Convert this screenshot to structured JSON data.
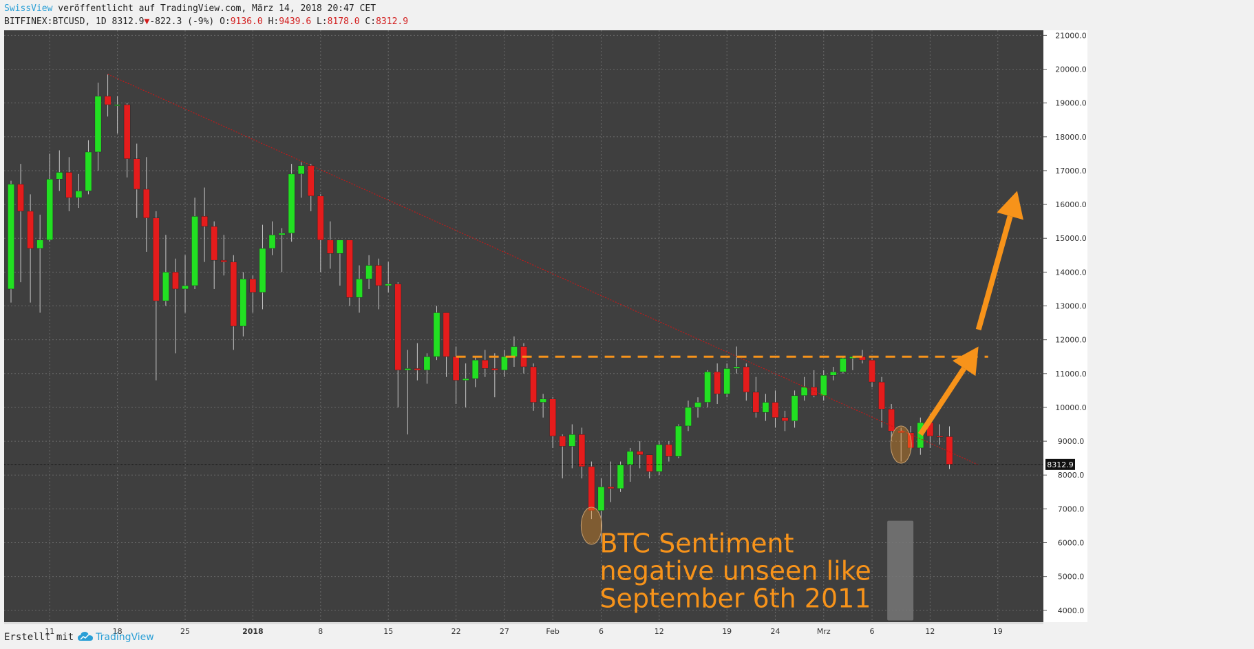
{
  "header": {
    "brand": "SwissView",
    "published": " veröffentlicht auf TradingView.com, März 14, 2018 20:47 CET",
    "symbol": "BITFINEX:BTCUSD, 1D 8312.9",
    "change_arrow": "▼",
    "change": "-822.3 (-9%)",
    "o_label": " O:",
    "o_value": "9136.0",
    "h_label": " H:",
    "h_value": "9439.6",
    "l_label": " L:",
    "l_value": "8178.0",
    "c_label": " C:",
    "c_value": "8312.9"
  },
  "footer": {
    "created_with": "Erstellt mit",
    "tradingview": "TradingView"
  },
  "colors": {
    "background": "#3f3f3f",
    "grid": "#6a6a6a",
    "up": "#22e022",
    "down": "#e51c1c",
    "wick": "#c8c8c8",
    "annotation": "#f7931a",
    "trendline": "#c11a1a"
  },
  "chart_data": {
    "type": "candlestick",
    "x_start": "2017-12-07",
    "x_end": "2018-03-23",
    "ylim": [
      3650,
      21150
    ],
    "y_ticks": [
      4000,
      5000,
      6000,
      7000,
      8000,
      9000,
      10000,
      11000,
      12000,
      13000,
      14000,
      15000,
      16000,
      17000,
      18000,
      19000,
      20000,
      21000
    ],
    "y_tick_labels": [
      "4000.0",
      "5000.0",
      "6000.0",
      "7000.0",
      "8000.0",
      "9000.0",
      "10000.0",
      "11000.0",
      "12000.0",
      "13000.0",
      "14000.0",
      "15000.0",
      "16000.0",
      "17000.0",
      "18000.0",
      "19000.0",
      "20000.0",
      "21000.0"
    ],
    "x_ticks": [
      {
        "date": "2017-12-11",
        "label": "11",
        "bold": false
      },
      {
        "date": "2017-12-18",
        "label": "18",
        "bold": false
      },
      {
        "date": "2017-12-25",
        "label": "25",
        "bold": false
      },
      {
        "date": "2018-01-01",
        "label": "2018",
        "bold": true
      },
      {
        "date": "2018-01-08",
        "label": "8",
        "bold": false
      },
      {
        "date": "2018-01-15",
        "label": "15",
        "bold": false
      },
      {
        "date": "2018-01-22",
        "label": "22",
        "bold": false
      },
      {
        "date": "2018-01-27",
        "label": "27",
        "bold": false
      },
      {
        "date": "2018-02-01",
        "label": "Feb",
        "bold": false
      },
      {
        "date": "2018-02-06",
        "label": "6",
        "bold": false
      },
      {
        "date": "2018-02-12",
        "label": "12",
        "bold": false
      },
      {
        "date": "2018-02-19",
        "label": "19",
        "bold": false
      },
      {
        "date": "2018-02-24",
        "label": "24",
        "bold": false
      },
      {
        "date": "2018-03-01",
        "label": "Mrz",
        "bold": false
      },
      {
        "date": "2018-03-06",
        "label": "6",
        "bold": false
      },
      {
        "date": "2018-03-12",
        "label": "12",
        "bold": false
      },
      {
        "date": "2018-03-19",
        "label": "19",
        "bold": false
      }
    ],
    "last_price": 8312.9,
    "last_price_label": "8312.9",
    "candles": [
      {
        "d": "2017-12-07",
        "o": 13500,
        "h": 16700,
        "l": 13100,
        "c": 16600
      },
      {
        "d": "2017-12-08",
        "o": 16600,
        "h": 17200,
        "l": 13700,
        "c": 15800
      },
      {
        "d": "2017-12-09",
        "o": 15800,
        "h": 16300,
        "l": 13100,
        "c": 14700
      },
      {
        "d": "2017-12-10",
        "o": 14700,
        "h": 15700,
        "l": 12800,
        "c": 14950
      },
      {
        "d": "2017-12-11",
        "o": 14950,
        "h": 17500,
        "l": 14900,
        "c": 16750
      },
      {
        "d": "2017-12-12",
        "o": 16750,
        "h": 17600,
        "l": 16400,
        "c": 16950
      },
      {
        "d": "2017-12-13",
        "o": 16950,
        "h": 17400,
        "l": 15800,
        "c": 16200
      },
      {
        "d": "2017-12-14",
        "o": 16200,
        "h": 16900,
        "l": 15900,
        "c": 16400
      },
      {
        "d": "2017-12-15",
        "o": 16400,
        "h": 17900,
        "l": 16300,
        "c": 17550
      },
      {
        "d": "2017-12-16",
        "o": 17550,
        "h": 19600,
        "l": 17000,
        "c": 19200
      },
      {
        "d": "2017-12-17",
        "o": 19200,
        "h": 19850,
        "l": 18600,
        "c": 18950
      },
      {
        "d": "2017-12-18",
        "o": 18950,
        "h": 19200,
        "l": 18100,
        "c": 18950
      },
      {
        "d": "2017-12-19",
        "o": 18950,
        "h": 19000,
        "l": 16800,
        "c": 17350
      },
      {
        "d": "2017-12-20",
        "o": 17350,
        "h": 17800,
        "l": 15600,
        "c": 16450
      },
      {
        "d": "2017-12-21",
        "o": 16450,
        "h": 17400,
        "l": 14600,
        "c": 15600
      },
      {
        "d": "2017-12-22",
        "o": 15600,
        "h": 15800,
        "l": 10800,
        "c": 13150
      },
      {
        "d": "2017-12-23",
        "o": 13150,
        "h": 15100,
        "l": 13000,
        "c": 14000
      },
      {
        "d": "2017-12-24",
        "o": 14000,
        "h": 14400,
        "l": 11600,
        "c": 13500
      },
      {
        "d": "2017-12-25",
        "o": 13500,
        "h": 14500,
        "l": 12800,
        "c": 13600
      },
      {
        "d": "2017-12-26",
        "o": 13600,
        "h": 16200,
        "l": 13500,
        "c": 15650
      },
      {
        "d": "2017-12-27",
        "o": 15650,
        "h": 16500,
        "l": 14300,
        "c": 15350
      },
      {
        "d": "2017-12-28",
        "o": 15350,
        "h": 15500,
        "l": 13500,
        "c": 14350
      },
      {
        "d": "2017-12-29",
        "o": 14350,
        "h": 15100,
        "l": 13900,
        "c": 14300
      },
      {
        "d": "2017-12-30",
        "o": 14300,
        "h": 14500,
        "l": 11700,
        "c": 12400
      },
      {
        "d": "2017-12-31",
        "o": 12400,
        "h": 14000,
        "l": 12100,
        "c": 13800
      },
      {
        "d": "2018-01-01",
        "o": 13800,
        "h": 13900,
        "l": 12800,
        "c": 13400
      },
      {
        "d": "2018-01-02",
        "o": 13400,
        "h": 15400,
        "l": 12900,
        "c": 14700
      },
      {
        "d": "2018-01-03",
        "o": 14700,
        "h": 15500,
        "l": 14500,
        "c": 15100
      },
      {
        "d": "2018-01-04",
        "o": 15100,
        "h": 15300,
        "l": 14000,
        "c": 15150
      },
      {
        "d": "2018-01-05",
        "o": 15150,
        "h": 17200,
        "l": 14900,
        "c": 16900
      },
      {
        "d": "2018-01-06",
        "o": 16900,
        "h": 17250,
        "l": 16200,
        "c": 17150
      },
      {
        "d": "2018-01-07",
        "o": 17150,
        "h": 17200,
        "l": 15800,
        "c": 16250
      },
      {
        "d": "2018-01-08",
        "o": 16250,
        "h": 16300,
        "l": 14000,
        "c": 14950
      },
      {
        "d": "2018-01-09",
        "o": 14950,
        "h": 15500,
        "l": 14100,
        "c": 14550
      },
      {
        "d": "2018-01-10",
        "o": 14550,
        "h": 14900,
        "l": 13600,
        "c": 14950
      },
      {
        "d": "2018-01-11",
        "o": 14950,
        "h": 14950,
        "l": 13000,
        "c": 13250
      },
      {
        "d": "2018-01-12",
        "o": 13250,
        "h": 14200,
        "l": 12800,
        "c": 13800
      },
      {
        "d": "2018-01-13",
        "o": 13800,
        "h": 14500,
        "l": 13500,
        "c": 14200
      },
      {
        "d": "2018-01-14",
        "o": 14200,
        "h": 14400,
        "l": 12900,
        "c": 13600
      },
      {
        "d": "2018-01-15",
        "o": 13600,
        "h": 14300,
        "l": 13400,
        "c": 13650
      },
      {
        "d": "2018-01-16",
        "o": 13650,
        "h": 13700,
        "l": 10000,
        "c": 11100
      },
      {
        "d": "2018-01-17",
        "o": 11100,
        "h": 11700,
        "l": 9200,
        "c": 11150
      },
      {
        "d": "2018-01-18",
        "o": 11150,
        "h": 11900,
        "l": 10800,
        "c": 11100
      },
      {
        "d": "2018-01-19",
        "o": 11100,
        "h": 11600,
        "l": 10700,
        "c": 11500
      },
      {
        "d": "2018-01-20",
        "o": 11500,
        "h": 13000,
        "l": 11400,
        "c": 12800
      },
      {
        "d": "2018-01-21",
        "o": 12800,
        "h": 12800,
        "l": 10900,
        "c": 11500
      },
      {
        "d": "2018-01-22",
        "o": 11500,
        "h": 11800,
        "l": 10100,
        "c": 10800
      },
      {
        "d": "2018-01-23",
        "o": 10800,
        "h": 11300,
        "l": 10000,
        "c": 10850
      },
      {
        "d": "2018-01-24",
        "o": 10850,
        "h": 11500,
        "l": 10600,
        "c": 11400
      },
      {
        "d": "2018-01-25",
        "o": 11400,
        "h": 11700,
        "l": 10900,
        "c": 11150
      },
      {
        "d": "2018-01-26",
        "o": 11150,
        "h": 11600,
        "l": 10300,
        "c": 11100
      },
      {
        "d": "2018-01-27",
        "o": 11100,
        "h": 11700,
        "l": 10900,
        "c": 11500
      },
      {
        "d": "2018-01-28",
        "o": 11500,
        "h": 12100,
        "l": 11200,
        "c": 11800
      },
      {
        "d": "2018-01-29",
        "o": 11800,
        "h": 11900,
        "l": 11000,
        "c": 11200
      },
      {
        "d": "2018-01-30",
        "o": 11200,
        "h": 11300,
        "l": 9900,
        "c": 10150
      },
      {
        "d": "2018-01-31",
        "o": 10150,
        "h": 10400,
        "l": 9700,
        "c": 10250
      },
      {
        "d": "2018-02-01",
        "o": 10250,
        "h": 10300,
        "l": 8800,
        "c": 9150
      },
      {
        "d": "2018-02-02",
        "o": 9150,
        "h": 9200,
        "l": 7900,
        "c": 8850
      },
      {
        "d": "2018-02-03",
        "o": 8850,
        "h": 9500,
        "l": 8200,
        "c": 9200
      },
      {
        "d": "2018-02-04",
        "o": 9200,
        "h": 9400,
        "l": 7900,
        "c": 8250
      },
      {
        "d": "2018-02-05",
        "o": 8250,
        "h": 8400,
        "l": 6700,
        "c": 6950
      },
      {
        "d": "2018-02-06",
        "o": 6950,
        "h": 7900,
        "l": 6000,
        "c": 7650
      },
      {
        "d": "2018-02-07",
        "o": 7650,
        "h": 8400,
        "l": 7200,
        "c": 7600
      },
      {
        "d": "2018-02-08",
        "o": 7600,
        "h": 8400,
        "l": 7500,
        "c": 8300
      },
      {
        "d": "2018-02-09",
        "o": 8300,
        "h": 8800,
        "l": 7800,
        "c": 8700
      },
      {
        "d": "2018-02-10",
        "o": 8700,
        "h": 9000,
        "l": 8200,
        "c": 8600
      },
      {
        "d": "2018-02-11",
        "o": 8600,
        "h": 8600,
        "l": 7900,
        "c": 8100
      },
      {
        "d": "2018-02-12",
        "o": 8100,
        "h": 9000,
        "l": 8000,
        "c": 8900
      },
      {
        "d": "2018-02-13",
        "o": 8900,
        "h": 9000,
        "l": 8400,
        "c": 8550
      },
      {
        "d": "2018-02-14",
        "o": 8550,
        "h": 9500,
        "l": 8500,
        "c": 9450
      },
      {
        "d": "2018-02-15",
        "o": 9450,
        "h": 10200,
        "l": 9300,
        "c": 10000
      },
      {
        "d": "2018-02-16",
        "o": 10000,
        "h": 10300,
        "l": 9700,
        "c": 10150
      },
      {
        "d": "2018-02-17",
        "o": 10150,
        "h": 11100,
        "l": 10000,
        "c": 11050
      },
      {
        "d": "2018-02-18",
        "o": 11050,
        "h": 11300,
        "l": 10100,
        "c": 10400
      },
      {
        "d": "2018-02-19",
        "o": 10400,
        "h": 11300,
        "l": 10300,
        "c": 11150
      },
      {
        "d": "2018-02-20",
        "o": 11150,
        "h": 11800,
        "l": 11000,
        "c": 11200
      },
      {
        "d": "2018-02-21",
        "o": 11200,
        "h": 11300,
        "l": 10200,
        "c": 10450
      },
      {
        "d": "2018-02-22",
        "o": 10450,
        "h": 10900,
        "l": 9700,
        "c": 9850
      },
      {
        "d": "2018-02-23",
        "o": 9850,
        "h": 10400,
        "l": 9600,
        "c": 10150
      },
      {
        "d": "2018-02-24",
        "o": 10150,
        "h": 10500,
        "l": 9400,
        "c": 9700
      },
      {
        "d": "2018-02-25",
        "o": 9700,
        "h": 9900,
        "l": 9300,
        "c": 9600
      },
      {
        "d": "2018-02-26",
        "o": 9600,
        "h": 10500,
        "l": 9400,
        "c": 10350
      },
      {
        "d": "2018-02-27",
        "o": 10350,
        "h": 10900,
        "l": 10200,
        "c": 10600
      },
      {
        "d": "2018-02-28",
        "o": 10600,
        "h": 11100,
        "l": 10300,
        "c": 10350
      },
      {
        "d": "2018-03-01",
        "o": 10350,
        "h": 11100,
        "l": 10200,
        "c": 10950
      },
      {
        "d": "2018-03-02",
        "o": 10950,
        "h": 11200,
        "l": 10800,
        "c": 11050
      },
      {
        "d": "2018-03-03",
        "o": 11050,
        "h": 11500,
        "l": 11000,
        "c": 11450
      },
      {
        "d": "2018-03-04",
        "o": 11450,
        "h": 11500,
        "l": 11100,
        "c": 11500
      },
      {
        "d": "2018-03-05",
        "o": 11500,
        "h": 11700,
        "l": 11300,
        "c": 11400
      },
      {
        "d": "2018-03-06",
        "o": 11400,
        "h": 11450,
        "l": 10600,
        "c": 10750
      },
      {
        "d": "2018-03-07",
        "o": 10750,
        "h": 10900,
        "l": 9400,
        "c": 9950
      },
      {
        "d": "2018-03-08",
        "o": 9950,
        "h": 10100,
        "l": 9000,
        "c": 9300
      },
      {
        "d": "2018-03-09",
        "o": 9300,
        "h": 9400,
        "l": 8400,
        "c": 9250
      },
      {
        "d": "2018-03-10",
        "o": 9250,
        "h": 9450,
        "l": 8700,
        "c": 8800
      },
      {
        "d": "2018-03-11",
        "o": 8800,
        "h": 9700,
        "l": 8600,
        "c": 9550
      },
      {
        "d": "2018-03-12",
        "o": 9550,
        "h": 9800,
        "l": 8800,
        "c": 9150
      },
      {
        "d": "2018-03-13",
        "o": 9150,
        "h": 9500,
        "l": 8900,
        "c": 9136
      },
      {
        "d": "2018-03-14",
        "o": 9136,
        "h": 9440,
        "l": 8178,
        "c": 8313
      }
    ],
    "annotations": {
      "resistance_level": 11500,
      "resistance_from": "2018-01-22",
      "resistance_to": "2018-03-18",
      "trendline": {
        "from_date": "2017-12-17",
        "from_value": 19850,
        "to_date": "2018-03-17",
        "to_value": 8300
      },
      "ellipses": [
        {
          "date": "2018-02-05",
          "value": 6500
        },
        {
          "date": "2018-03-09",
          "value": 8900
        }
      ],
      "arrows": [
        {
          "from_date": "2018-03-11",
          "from_value": 9200,
          "to_date": "2018-03-17",
          "to_value": 11800
        },
        {
          "from_date": "2018-03-17",
          "from_value": 12300,
          "to_date": "2018-03-21",
          "to_value": 16400
        }
      ],
      "text_lines": [
        "BTC Sentiment",
        "negative unseen like",
        "September 6th 2011"
      ]
    }
  }
}
